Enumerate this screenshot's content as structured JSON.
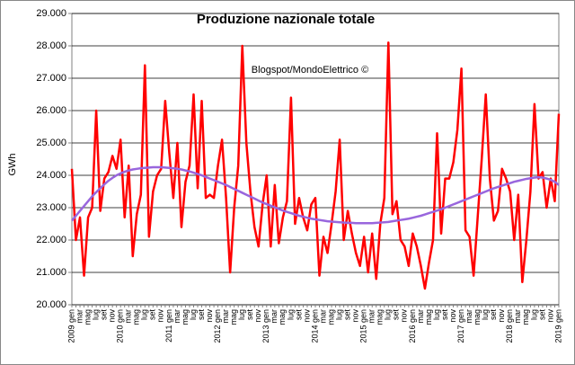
{
  "chart_data": {
    "type": "line",
    "title": "Produzione nazionale totale",
    "annotation": "Blogspot/MondoElettrico ©",
    "y_label": "GWh",
    "grid": true,
    "categories": [
      "2009 gen",
      null,
      "mar",
      null,
      "mag",
      null,
      "lug",
      null,
      "set",
      null,
      "nov",
      null,
      "2010 gen",
      null,
      "mar",
      null,
      "mag",
      null,
      "lug",
      null,
      "set",
      null,
      "nov",
      null,
      "2011 gen",
      null,
      "mar",
      null,
      "mag",
      null,
      "lug",
      null,
      "set",
      null,
      "nov",
      null,
      "2012 gen",
      null,
      "mar",
      null,
      "mag",
      null,
      "lug",
      null,
      "set",
      null,
      "nov",
      null,
      "2013 gen",
      null,
      "mar",
      null,
      "mag",
      null,
      "lug",
      null,
      "set",
      null,
      "nov",
      null,
      "2014 gen",
      null,
      "mar",
      null,
      "mag",
      null,
      "lug",
      null,
      "set",
      null,
      "nov",
      null,
      "2015 gen",
      null,
      "mar",
      null,
      "mag",
      null,
      "lug",
      null,
      "set",
      null,
      "nov",
      null,
      "2016 gen",
      null,
      "mar",
      null,
      "mag",
      null,
      "lug",
      null,
      "set",
      null,
      "nov",
      null,
      "2017 gen",
      null,
      "mar",
      null,
      "mag",
      null,
      "lug",
      null,
      "set",
      null,
      "nov",
      null,
      "2018 gen",
      null,
      "mar",
      null,
      "mag",
      null,
      "lug",
      null,
      "set",
      null,
      "nov",
      null,
      "2019 gen"
    ],
    "series": [
      {
        "color": "#ff0000",
        "width": 2.5,
        "values": [
          24200,
          22000,
          22700,
          20900,
          22700,
          23000,
          26000,
          22900,
          23900,
          24100,
          24600,
          24200,
          25100,
          22700,
          24300,
          21500,
          22800,
          23400,
          27400,
          22100,
          23500,
          24000,
          24200,
          26300,
          24700,
          23300,
          25000,
          22400,
          23800,
          24300,
          26500,
          23600,
          26300,
          23300,
          23400,
          23300,
          24300,
          25100,
          23300,
          21000,
          23000,
          24300,
          28000,
          25000,
          23500,
          22400,
          21800,
          23100,
          24000,
          21800,
          23700,
          21900,
          22700,
          23200,
          26400,
          22500,
          23300,
          22700,
          22300,
          23100,
          23300,
          20900,
          22100,
          21600,
          22500,
          23500,
          25100,
          22000,
          22900,
          22200,
          21600,
          21200,
          22100,
          21000,
          22200,
          20800,
          22500,
          23300,
          28100,
          22800,
          23200,
          22000,
          21800,
          21200,
          22200,
          21800,
          21200,
          20500,
          21300,
          22000,
          25300,
          22200,
          23900,
          23900,
          24400,
          25400,
          27300,
          22300,
          22100,
          20900,
          22700,
          24500,
          26500,
          23900,
          22600,
          22900,
          24200,
          23900,
          23500,
          22000,
          23400,
          20700,
          22000,
          23500,
          26200,
          23900,
          24100,
          23000,
          23900,
          23200,
          25900
        ]
      },
      {
        "color": "#9966dd",
        "width": 2.5,
        "values": [
          22600,
          22750,
          22900,
          23050,
          23200,
          23350,
          23480,
          23600,
          23720,
          23830,
          23920,
          24000,
          24060,
          24110,
          24150,
          24180,
          24200,
          24220,
          24230,
          24240,
          24250,
          24250,
          24250,
          24240,
          24230,
          24220,
          24200,
          24180,
          24150,
          24120,
          24080,
          24040,
          24000,
          23950,
          23900,
          23850,
          23800,
          23750,
          23700,
          23640,
          23580,
          23520,
          23460,
          23400,
          23340,
          23280,
          23220,
          23160,
          23110,
          23060,
          23010,
          22960,
          22910,
          22870,
          22830,
          22790,
          22750,
          22720,
          22690,
          22660,
          22640,
          22620,
          22600,
          22580,
          22570,
          22560,
          22550,
          22540,
          22530,
          22530,
          22520,
          22520,
          22520,
          22520,
          22520,
          22530,
          22540,
          22550,
          22560,
          22580,
          22600,
          22620,
          22640,
          22660,
          22690,
          22720,
          22750,
          22790,
          22830,
          22870,
          22910,
          22950,
          23000,
          23050,
          23100,
          23150,
          23200,
          23250,
          23300,
          23350,
          23400,
          23450,
          23500,
          23550,
          23600,
          23640,
          23680,
          23720,
          23760,
          23800,
          23830,
          23860,
          23890,
          23910,
          23930,
          23940,
          23930,
          23900,
          23860,
          23800,
          23700
        ]
      }
    ],
    "ylim": [
      20000,
      29000
    ],
    "yticks": [
      {
        "value": 20000,
        "label": "20.000"
      },
      {
        "value": 21000,
        "label": "21.000"
      },
      {
        "value": 22000,
        "label": "22.000"
      },
      {
        "value": 23000,
        "label": "23.000"
      },
      {
        "value": 24000,
        "label": "24.000"
      },
      {
        "value": 25000,
        "label": "25.000"
      },
      {
        "value": 26000,
        "label": "26.000"
      },
      {
        "value": 27000,
        "label": "27.000"
      },
      {
        "value": 28000,
        "label": "28.000"
      },
      {
        "value": 29000,
        "label": "29.000"
      }
    ]
  }
}
